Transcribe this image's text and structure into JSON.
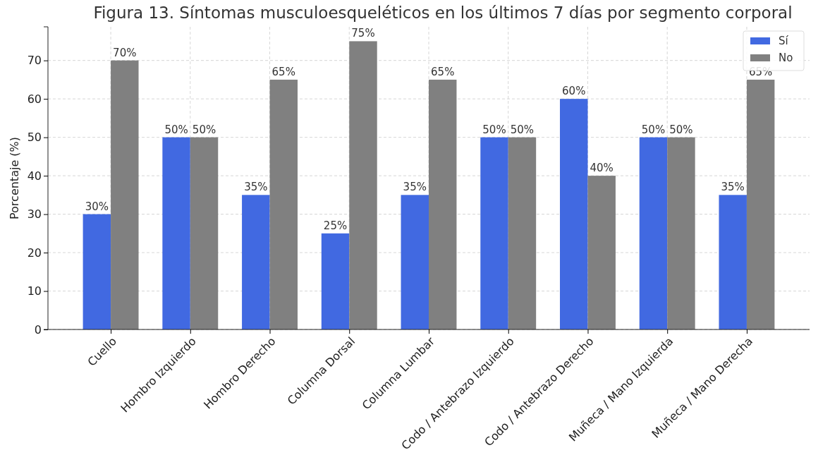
{
  "chart_data": {
    "type": "bar",
    "title": "Figura 13. Síntomas musculoesqueléticos en los últimos 7 días por segmento corporal",
    "ylabel": "Porcentaje (%)",
    "categories": [
      "Cuello",
      "Hombro Izquierdo",
      "Hombro Derecho",
      "Columna Dorsal",
      "Columna Lumbar",
      "Codo / Antebrazo Izquierdo",
      "Codo / Antebrazo Derecho",
      "Muñeca / Mano Izquierda",
      "Muñeca / Mano Derecha"
    ],
    "series": [
      {
        "name": "Sí",
        "color": "#4169e1",
        "values": [
          30,
          50,
          35,
          25,
          35,
          50,
          60,
          50,
          35
        ],
        "value_labels": [
          "30%",
          "50%",
          "35%",
          "25%",
          "35%",
          "50%",
          "60%",
          "50%",
          "35%"
        ]
      },
      {
        "name": "No",
        "color": "#808080",
        "values": [
          70,
          50,
          65,
          75,
          65,
          50,
          40,
          50,
          65
        ],
        "value_labels": [
          "70%",
          "50%",
          "65%",
          "75%",
          "65%",
          "50%",
          "40%",
          "50%",
          "65%"
        ]
      }
    ],
    "ylim": [
      0,
      78.75
    ],
    "yticks": [
      0,
      10,
      20,
      30,
      40,
      50,
      60,
      70
    ],
    "grid": true,
    "legend": "top right"
  }
}
